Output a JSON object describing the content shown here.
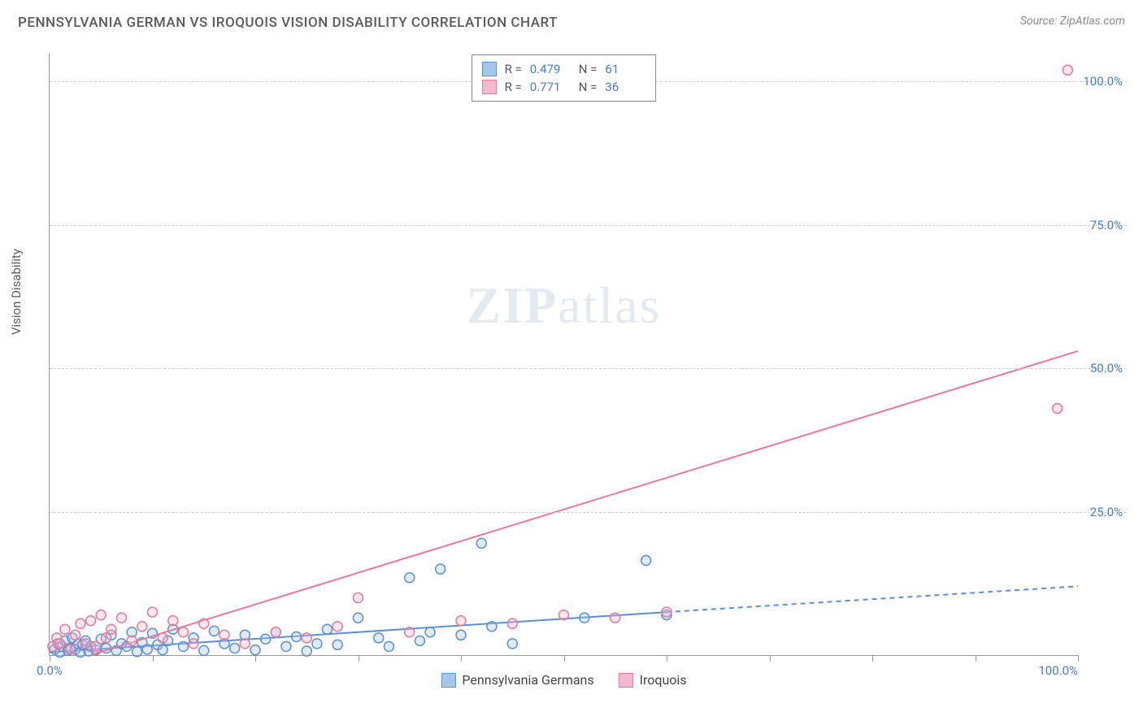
{
  "header": {
    "title": "PENNSYLVANIA GERMAN VS IROQUOIS VISION DISABILITY CORRELATION CHART",
    "source_prefix": "Source: ",
    "source_name": "ZipAtlas.com"
  },
  "chart": {
    "type": "scatter",
    "y_axis_label": "Vision Disability",
    "xlim": [
      0,
      100
    ],
    "ylim": [
      0,
      105
    ],
    "x_ticks": [
      0,
      10,
      20,
      30,
      40,
      50,
      60,
      70,
      80,
      90,
      100
    ],
    "x_tick_labels": {
      "0": "0.0%",
      "100": "100.0%"
    },
    "y_gridlines": [
      25,
      50,
      75,
      100
    ],
    "y_tick_labels": {
      "25": "25.0%",
      "50": "50.0%",
      "75": "75.0%",
      "100": "100.0%"
    },
    "grid_color": "#d0d0d0",
    "axis_color": "#999999",
    "tick_label_color": "#4a7bd0",
    "background_color": "#ffffff",
    "marker_radius": 6,
    "marker_stroke_width": 1.5,
    "marker_fill_opacity": 0.35,
    "line_width": 2,
    "watermark_text_a": "ZIP",
    "watermark_text_b": "atlas"
  },
  "series": [
    {
      "key": "pa_german",
      "name": "Pennsylvania Germans",
      "color_stroke": "#5b8fd6",
      "color_fill": "#a8c5ec",
      "r_value": "0.479",
      "n_value": "61",
      "trend": {
        "x1": 0,
        "y1": 0.5,
        "x2": 60,
        "y2": 7.5,
        "x2_dash": 100,
        "y2_dash": 12,
        "dash_from_x": 60
      },
      "points": [
        [
          0.5,
          1.0
        ],
        [
          0.8,
          2.0
        ],
        [
          1.0,
          0.5
        ],
        [
          1.2,
          1.5
        ],
        [
          1.5,
          2.5
        ],
        [
          1.8,
          0.8
        ],
        [
          2.0,
          1.2
        ],
        [
          2.2,
          3.0
        ],
        [
          2.5,
          1.0
        ],
        [
          2.8,
          2.0
        ],
        [
          3.0,
          0.5
        ],
        [
          3.2,
          1.8
        ],
        [
          3.5,
          2.5
        ],
        [
          3.8,
          0.7
        ],
        [
          4.0,
          1.5
        ],
        [
          4.5,
          0.9
        ],
        [
          5.0,
          2.8
        ],
        [
          5.5,
          1.2
        ],
        [
          6.0,
          3.5
        ],
        [
          6.5,
          0.8
        ],
        [
          7.0,
          2.0
        ],
        [
          7.5,
          1.5
        ],
        [
          8.0,
          4.0
        ],
        [
          8.5,
          0.6
        ],
        [
          9.0,
          2.2
        ],
        [
          9.5,
          1.0
        ],
        [
          10.0,
          3.8
        ],
        [
          10.5,
          1.8
        ],
        [
          11.0,
          0.9
        ],
        [
          11.5,
          2.5
        ],
        [
          12.0,
          4.5
        ],
        [
          13.0,
          1.5
        ],
        [
          14.0,
          3.0
        ],
        [
          15.0,
          0.8
        ],
        [
          16.0,
          4.2
        ],
        [
          17.0,
          2.0
        ],
        [
          18.0,
          1.2
        ],
        [
          19.0,
          3.5
        ],
        [
          20.0,
          0.9
        ],
        [
          21.0,
          2.8
        ],
        [
          22.0,
          4.0
        ],
        [
          23.0,
          1.5
        ],
        [
          24.0,
          3.2
        ],
        [
          25.0,
          0.7
        ],
        [
          26.0,
          2.0
        ],
        [
          27.0,
          4.5
        ],
        [
          28.0,
          1.8
        ],
        [
          30.0,
          6.5
        ],
        [
          32.0,
          3.0
        ],
        [
          33.0,
          1.5
        ],
        [
          35.0,
          13.5
        ],
        [
          36.0,
          2.5
        ],
        [
          37.0,
          4.0
        ],
        [
          38.0,
          15.0
        ],
        [
          40.0,
          3.5
        ],
        [
          42.0,
          19.5
        ],
        [
          43.0,
          5.0
        ],
        [
          45.0,
          2.0
        ],
        [
          52.0,
          6.5
        ],
        [
          58.0,
          16.5
        ],
        [
          60.0,
          7.0
        ]
      ]
    },
    {
      "key": "iroquois",
      "name": "Iroquois",
      "color_stroke": "#e67a9a",
      "color_fill": "#f5b8cc",
      "r_value": "0.771",
      "n_value": "36",
      "trend": {
        "x1": 4,
        "y1": 0,
        "x2": 100,
        "y2": 53,
        "dash_from_x": 100
      },
      "points": [
        [
          0.3,
          1.5
        ],
        [
          0.7,
          3.0
        ],
        [
          1.0,
          2.0
        ],
        [
          1.5,
          4.5
        ],
        [
          2.0,
          1.0
        ],
        [
          2.5,
          3.5
        ],
        [
          3.0,
          5.5
        ],
        [
          3.5,
          2.0
        ],
        [
          4.0,
          6.0
        ],
        [
          4.5,
          1.5
        ],
        [
          5.0,
          7.0
        ],
        [
          5.5,
          3.0
        ],
        [
          6.0,
          4.5
        ],
        [
          7.0,
          6.5
        ],
        [
          8.0,
          2.5
        ],
        [
          9.0,
          5.0
        ],
        [
          10.0,
          7.5
        ],
        [
          11.0,
          3.0
        ],
        [
          12.0,
          6.0
        ],
        [
          13.0,
          4.0
        ],
        [
          14.0,
          2.0
        ],
        [
          15.0,
          5.5
        ],
        [
          17.0,
          3.5
        ],
        [
          19.0,
          2.0
        ],
        [
          22.0,
          4.0
        ],
        [
          25.0,
          3.0
        ],
        [
          28.0,
          5.0
        ],
        [
          30.0,
          10.0
        ],
        [
          35.0,
          4.0
        ],
        [
          40.0,
          6.0
        ],
        [
          45.0,
          5.5
        ],
        [
          50.0,
          7.0
        ],
        [
          55.0,
          6.5
        ],
        [
          60.0,
          7.5
        ],
        [
          98.0,
          43.0
        ],
        [
          99.0,
          102.0
        ]
      ]
    }
  ],
  "legend_top": {
    "r_label": "R =",
    "n_label": "N ="
  },
  "legend_bottom_order": [
    "pa_german",
    "iroquois"
  ]
}
